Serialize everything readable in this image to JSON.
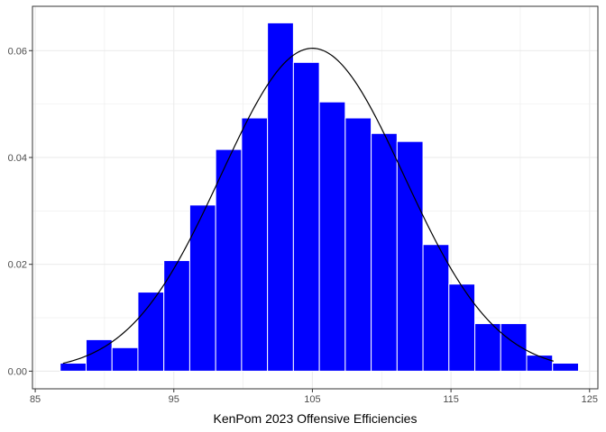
{
  "chart_data": {
    "type": "bar",
    "title": "",
    "xlabel": "KenPom 2023 Offensive Efficiencies",
    "ylabel": "",
    "xlim": [
      84.8,
      125.6
    ],
    "ylim": [
      -0.0033,
      0.0683
    ],
    "x_ticks": [
      85,
      95,
      105,
      115,
      125
    ],
    "y_ticks": [
      0.0,
      0.02,
      0.04,
      0.06
    ],
    "y_tick_labels": [
      "0.00",
      "0.02",
      "0.04",
      "0.06"
    ],
    "grid": true,
    "bin_width": 1.87,
    "bins": [
      {
        "x0": 86.8,
        "x1": 88.67,
        "density": 0.0015
      },
      {
        "x0": 88.67,
        "x1": 90.54,
        "density": 0.0059
      },
      {
        "x0": 90.54,
        "x1": 92.41,
        "density": 0.0044
      },
      {
        "x0": 92.41,
        "x1": 94.28,
        "density": 0.0148
      },
      {
        "x0": 94.28,
        "x1": 96.15,
        "density": 0.0207
      },
      {
        "x0": 96.15,
        "x1": 98.02,
        "density": 0.0311
      },
      {
        "x0": 98.02,
        "x1": 99.89,
        "density": 0.0415
      },
      {
        "x0": 99.89,
        "x1": 101.76,
        "density": 0.0474
      },
      {
        "x0": 101.76,
        "x1": 103.63,
        "density": 0.0652
      },
      {
        "x0": 103.63,
        "x1": 105.5,
        "density": 0.0578
      },
      {
        "x0": 105.5,
        "x1": 107.37,
        "density": 0.0504
      },
      {
        "x0": 107.37,
        "x1": 109.24,
        "density": 0.0474
      },
      {
        "x0": 109.24,
        "x1": 111.11,
        "density": 0.0445
      },
      {
        "x0": 111.11,
        "x1": 112.98,
        "density": 0.043
      },
      {
        "x0": 112.98,
        "x1": 114.85,
        "density": 0.0237
      },
      {
        "x0": 114.85,
        "x1": 116.72,
        "density": 0.0163
      },
      {
        "x0": 116.72,
        "x1": 118.59,
        "density": 0.0089
      },
      {
        "x0": 118.59,
        "x1": 120.46,
        "density": 0.0089
      },
      {
        "x0": 120.46,
        "x1": 122.33,
        "density": 0.003
      },
      {
        "x0": 122.33,
        "x1": 124.2,
        "density": 0.0015
      }
    ],
    "normal_curve": {
      "mean": 105.0,
      "sd": 6.6,
      "x_range": [
        87.0,
        122.4
      ]
    },
    "colors": {
      "bar_fill": "#0000ff",
      "bar_border": "#ffffff",
      "curve": "#000000",
      "grid": "#ebebeb",
      "panel_border": "#333333"
    }
  }
}
